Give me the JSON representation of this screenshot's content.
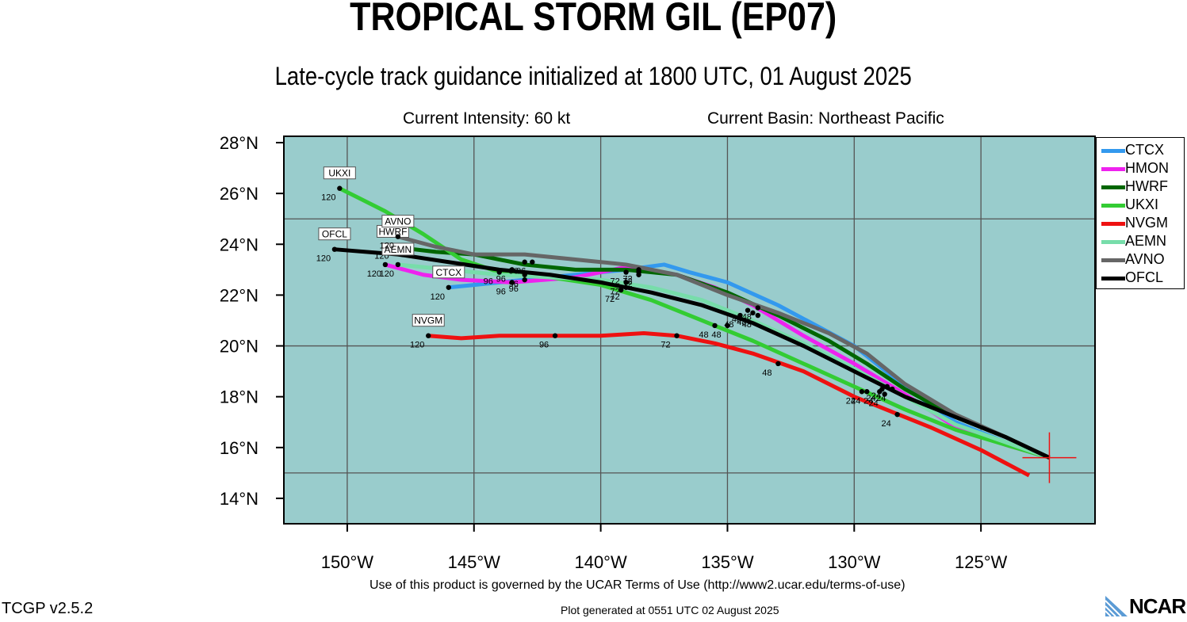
{
  "title": "TROPICAL STORM GIL (EP07)",
  "subtitle": "Late-cycle track guidance initialized at 1800 UTC, 01 August 2025",
  "intensity": "Current Intensity: 60 kt",
  "basin": "Current Basin: Northeast Pacific",
  "terms": "Use of this product is governed by the UCAR Terms of Use (http://www2.ucar.edu/terms-of-use)",
  "generated": "Plot generated at 0551 UTC   02 August 2025",
  "version": "TCGP v2.5.2",
  "logo_text": "NCAR",
  "colors": {
    "ocean": "#99cccc",
    "grid": "#555555",
    "frame": "#000000"
  },
  "chart_data": {
    "type": "map-track",
    "lon_range": [
      -152.5,
      -120.5
    ],
    "lat_range": [
      13,
      28.25
    ],
    "lat_ticks": [
      {
        "value": 14,
        "label": "14°N"
      },
      {
        "value": 16,
        "label": "16°N"
      },
      {
        "value": 18,
        "label": "18°N"
      },
      {
        "value": 20,
        "label": "20°N"
      },
      {
        "value": 22,
        "label": "22°N"
      },
      {
        "value": 24,
        "label": "24°N"
      },
      {
        "value": 26,
        "label": "26°N"
      },
      {
        "value": 28,
        "label": "28°N"
      }
    ],
    "lon_ticks": [
      {
        "value": -150,
        "label": "150°W"
      },
      {
        "value": -145,
        "label": "145°W"
      },
      {
        "value": -140,
        "label": "140°W"
      },
      {
        "value": -135,
        "label": "135°W"
      },
      {
        "value": -130,
        "label": "130°W"
      },
      {
        "value": -125,
        "label": "125°W"
      }
    ],
    "grid": {
      "lons": [
        -150,
        -145,
        -140,
        -135,
        -130,
        -125
      ],
      "lats": [
        15,
        20,
        25
      ]
    },
    "storm_position": {
      "lon": -122.3,
      "lat": 15.6
    },
    "series": [
      {
        "name": "CTCX",
        "color": "#3399ee",
        "points": [
          [
            -122.3,
            15.6
          ],
          [
            -124,
            16.2
          ],
          [
            -126,
            17.0
          ],
          [
            -128,
            18.4
          ],
          [
            -129,
            19.2
          ],
          [
            -130,
            20.0
          ],
          [
            -131.5,
            20.8
          ],
          [
            -133,
            21.6
          ],
          [
            -135,
            22.5
          ],
          [
            -136.5,
            22.9
          ],
          [
            -137.5,
            23.2
          ],
          [
            -139,
            23.0
          ],
          [
            -141,
            22.8
          ],
          [
            -143,
            22.6
          ],
          [
            -145,
            22.4
          ],
          [
            -146,
            22.3
          ]
        ],
        "markers": [
          {
            "lon": -128.5,
            "lat": 18.3,
            "text": "24"
          },
          {
            "lon": -133.8,
            "lat": 21.2,
            "text": "48"
          },
          {
            "lon": -138.5,
            "lat": 22.8,
            "text": "72"
          },
          {
            "lon": -143,
            "lat": 22.6,
            "text": "96"
          },
          {
            "lon": -146,
            "lat": 22.3,
            "text": "120",
            "tag": "CTCX"
          }
        ]
      },
      {
        "name": "HMON",
        "color": "#ee22ee",
        "points": [
          [
            -122.3,
            15.6
          ],
          [
            -124,
            16.1
          ],
          [
            -126,
            16.8
          ],
          [
            -128,
            18.1
          ],
          [
            -130,
            19.3
          ],
          [
            -132,
            20.4
          ],
          [
            -134,
            21.6
          ],
          [
            -135.5,
            22.3
          ],
          [
            -137,
            22.8
          ],
          [
            -139,
            23.1
          ],
          [
            -141,
            22.7
          ],
          [
            -143.5,
            22.5
          ],
          [
            -145.5,
            22.6
          ],
          [
            -147,
            22.8
          ],
          [
            -148.5,
            23.2
          ]
        ],
        "markers": [
          {
            "lon": -128.8,
            "lat": 18.1,
            "text": "24"
          },
          {
            "lon": -134.2,
            "lat": 21.4,
            "text": "48"
          },
          {
            "lon": -139,
            "lat": 22.9,
            "text": "72"
          },
          {
            "lon": -143.5,
            "lat": 22.5,
            "text": "96"
          },
          {
            "lon": -148.5,
            "lat": 23.2,
            "text": "120"
          }
        ]
      },
      {
        "name": "HWRF",
        "color": "#006600",
        "points": [
          [
            -122.3,
            15.6
          ],
          [
            -124,
            16.4
          ],
          [
            -126,
            17.2
          ],
          [
            -128,
            18.3
          ],
          [
            -129.5,
            19.3
          ],
          [
            -131,
            20.2
          ],
          [
            -133,
            21.2
          ],
          [
            -135,
            22.1
          ],
          [
            -137,
            22.8
          ],
          [
            -139,
            23.0
          ],
          [
            -141,
            23.0
          ],
          [
            -143,
            23.2
          ],
          [
            -145,
            23.6
          ],
          [
            -146.5,
            23.7
          ],
          [
            -148.2,
            23.9
          ]
        ],
        "markers": [
          {
            "lon": -128.9,
            "lat": 18.3,
            "text": "24"
          },
          {
            "lon": -134.0,
            "lat": 21.3,
            "text": "48"
          },
          {
            "lon": -138.5,
            "lat": 22.9,
            "text": "72"
          },
          {
            "lon": -143,
            "lat": 23.3,
            "text": "96"
          },
          {
            "lon": -148.2,
            "lat": 23.9,
            "text": "120",
            "tag": "HWRF"
          }
        ]
      },
      {
        "name": "UKXI",
        "color": "#33cc33",
        "points": [
          [
            -122.3,
            15.6
          ],
          [
            -124,
            16.1
          ],
          [
            -126,
            16.7
          ],
          [
            -128,
            17.5
          ],
          [
            -130,
            18.4
          ],
          [
            -132,
            19.3
          ],
          [
            -134,
            20.2
          ],
          [
            -136.5,
            21.2
          ],
          [
            -138,
            21.8
          ],
          [
            -140,
            22.4
          ],
          [
            -142,
            22.7
          ],
          [
            -144,
            22.9
          ],
          [
            -145.5,
            23.4
          ],
          [
            -147,
            24.4
          ],
          [
            -148.5,
            25.3
          ],
          [
            -150.3,
            26.2
          ]
        ],
        "markers": [
          {
            "lon": -129.5,
            "lat": 18.2,
            "text": "24"
          },
          {
            "lon": -135.5,
            "lat": 20.8,
            "text": "48"
          },
          {
            "lon": -139.2,
            "lat": 22.2,
            "text": "72"
          },
          {
            "lon": -144,
            "lat": 22.9,
            "text": "96"
          },
          {
            "lon": -150.3,
            "lat": 26.2,
            "text": "120",
            "tag": "UKXI"
          }
        ]
      },
      {
        "name": "NVGM",
        "color": "#ee1111",
        "points": [
          [
            -123.1,
            14.9
          ],
          [
            -125,
            15.9
          ],
          [
            -127,
            16.8
          ],
          [
            -128.5,
            17.4
          ],
          [
            -130,
            18.0
          ],
          [
            -132,
            19.0
          ],
          [
            -134,
            19.7
          ],
          [
            -135.5,
            20.1
          ],
          [
            -137,
            20.4
          ],
          [
            -138.3,
            20.5
          ],
          [
            -140,
            20.4
          ],
          [
            -142,
            20.4
          ],
          [
            -144,
            20.4
          ],
          [
            -145.5,
            20.3
          ],
          [
            -146.8,
            20.4
          ]
        ],
        "markers": [
          {
            "lon": -128.3,
            "lat": 17.3,
            "text": "24"
          },
          {
            "lon": -133,
            "lat": 19.3,
            "text": "48"
          },
          {
            "lon": -137,
            "lat": 20.4,
            "text": "72"
          },
          {
            "lon": -141.8,
            "lat": 20.4,
            "text": "96"
          },
          {
            "lon": -146.8,
            "lat": 20.4,
            "text": "120",
            "tag": "NVGM"
          }
        ]
      },
      {
        "name": "AEMN",
        "color": "#77ddaa",
        "points": [
          [
            -122.3,
            15.6
          ],
          [
            -124,
            16.2
          ],
          [
            -126,
            16.9
          ],
          [
            -128,
            18.0
          ],
          [
            -130,
            19.1
          ],
          [
            -132,
            20.1
          ],
          [
            -134,
            21.0
          ],
          [
            -136,
            21.8
          ],
          [
            -138,
            22.3
          ],
          [
            -140,
            22.6
          ],
          [
            -142,
            22.7
          ],
          [
            -144,
            22.8
          ],
          [
            -146,
            23.0
          ],
          [
            -148,
            23.2
          ]
        ],
        "markers": [
          {
            "lon": -129,
            "lat": 18.2,
            "text": "24"
          },
          {
            "lon": -134.5,
            "lat": 21.2,
            "text": "48"
          },
          {
            "lon": -139,
            "lat": 22.5,
            "text": "72"
          },
          {
            "lon": -143,
            "lat": 22.8,
            "text": "96"
          },
          {
            "lon": -148,
            "lat": 23.2,
            "text": "120",
            "tag": "AEMN"
          }
        ]
      },
      {
        "name": "AVNO",
        "color": "#666666",
        "points": [
          [
            -122.3,
            15.6
          ],
          [
            -124,
            16.4
          ],
          [
            -126,
            17.3
          ],
          [
            -128,
            18.5
          ],
          [
            -129.5,
            19.7
          ],
          [
            -131,
            20.5
          ],
          [
            -133,
            21.3
          ],
          [
            -135,
            22.0
          ],
          [
            -137,
            22.8
          ],
          [
            -139,
            23.2
          ],
          [
            -141,
            23.4
          ],
          [
            -143,
            23.6
          ],
          [
            -145,
            23.6
          ],
          [
            -146.5,
            23.9
          ],
          [
            -148,
            24.3
          ]
        ],
        "markers": [
          {
            "lon": -128.7,
            "lat": 18.4,
            "text": "24"
          },
          {
            "lon": -133.8,
            "lat": 21.5,
            "text": "48"
          },
          {
            "lon": -138.5,
            "lat": 23.0,
            "text": "72"
          },
          {
            "lon": -142.7,
            "lat": 23.3,
            "text": "96"
          },
          {
            "lon": -148,
            "lat": 24.3,
            "text": "120",
            "tag": "AVNO"
          }
        ]
      },
      {
        "name": "OFCL",
        "color": "#000000",
        "points": [
          [
            -122.3,
            15.6
          ],
          [
            -124,
            16.4
          ],
          [
            -126,
            17.2
          ],
          [
            -128,
            18.0
          ],
          [
            -130,
            19.0
          ],
          [
            -132,
            20.0
          ],
          [
            -134,
            20.9
          ],
          [
            -136,
            21.6
          ],
          [
            -138,
            22.1
          ],
          [
            -140,
            22.5
          ],
          [
            -142,
            22.8
          ],
          [
            -144,
            23.0
          ],
          [
            -146,
            23.3
          ],
          [
            -148,
            23.6
          ],
          [
            -150.5,
            23.8
          ]
        ],
        "markers": [
          {
            "lon": -129.7,
            "lat": 18.2,
            "text": "24"
          },
          {
            "lon": -135,
            "lat": 20.8,
            "text": "48"
          },
          {
            "lon": -139,
            "lat": 22.3,
            "text": "72"
          },
          {
            "lon": -143.5,
            "lat": 23.0,
            "text": "96"
          },
          {
            "lon": -150.5,
            "lat": 23.8,
            "text": "120",
            "tag": "OFCL"
          }
        ]
      }
    ]
  }
}
